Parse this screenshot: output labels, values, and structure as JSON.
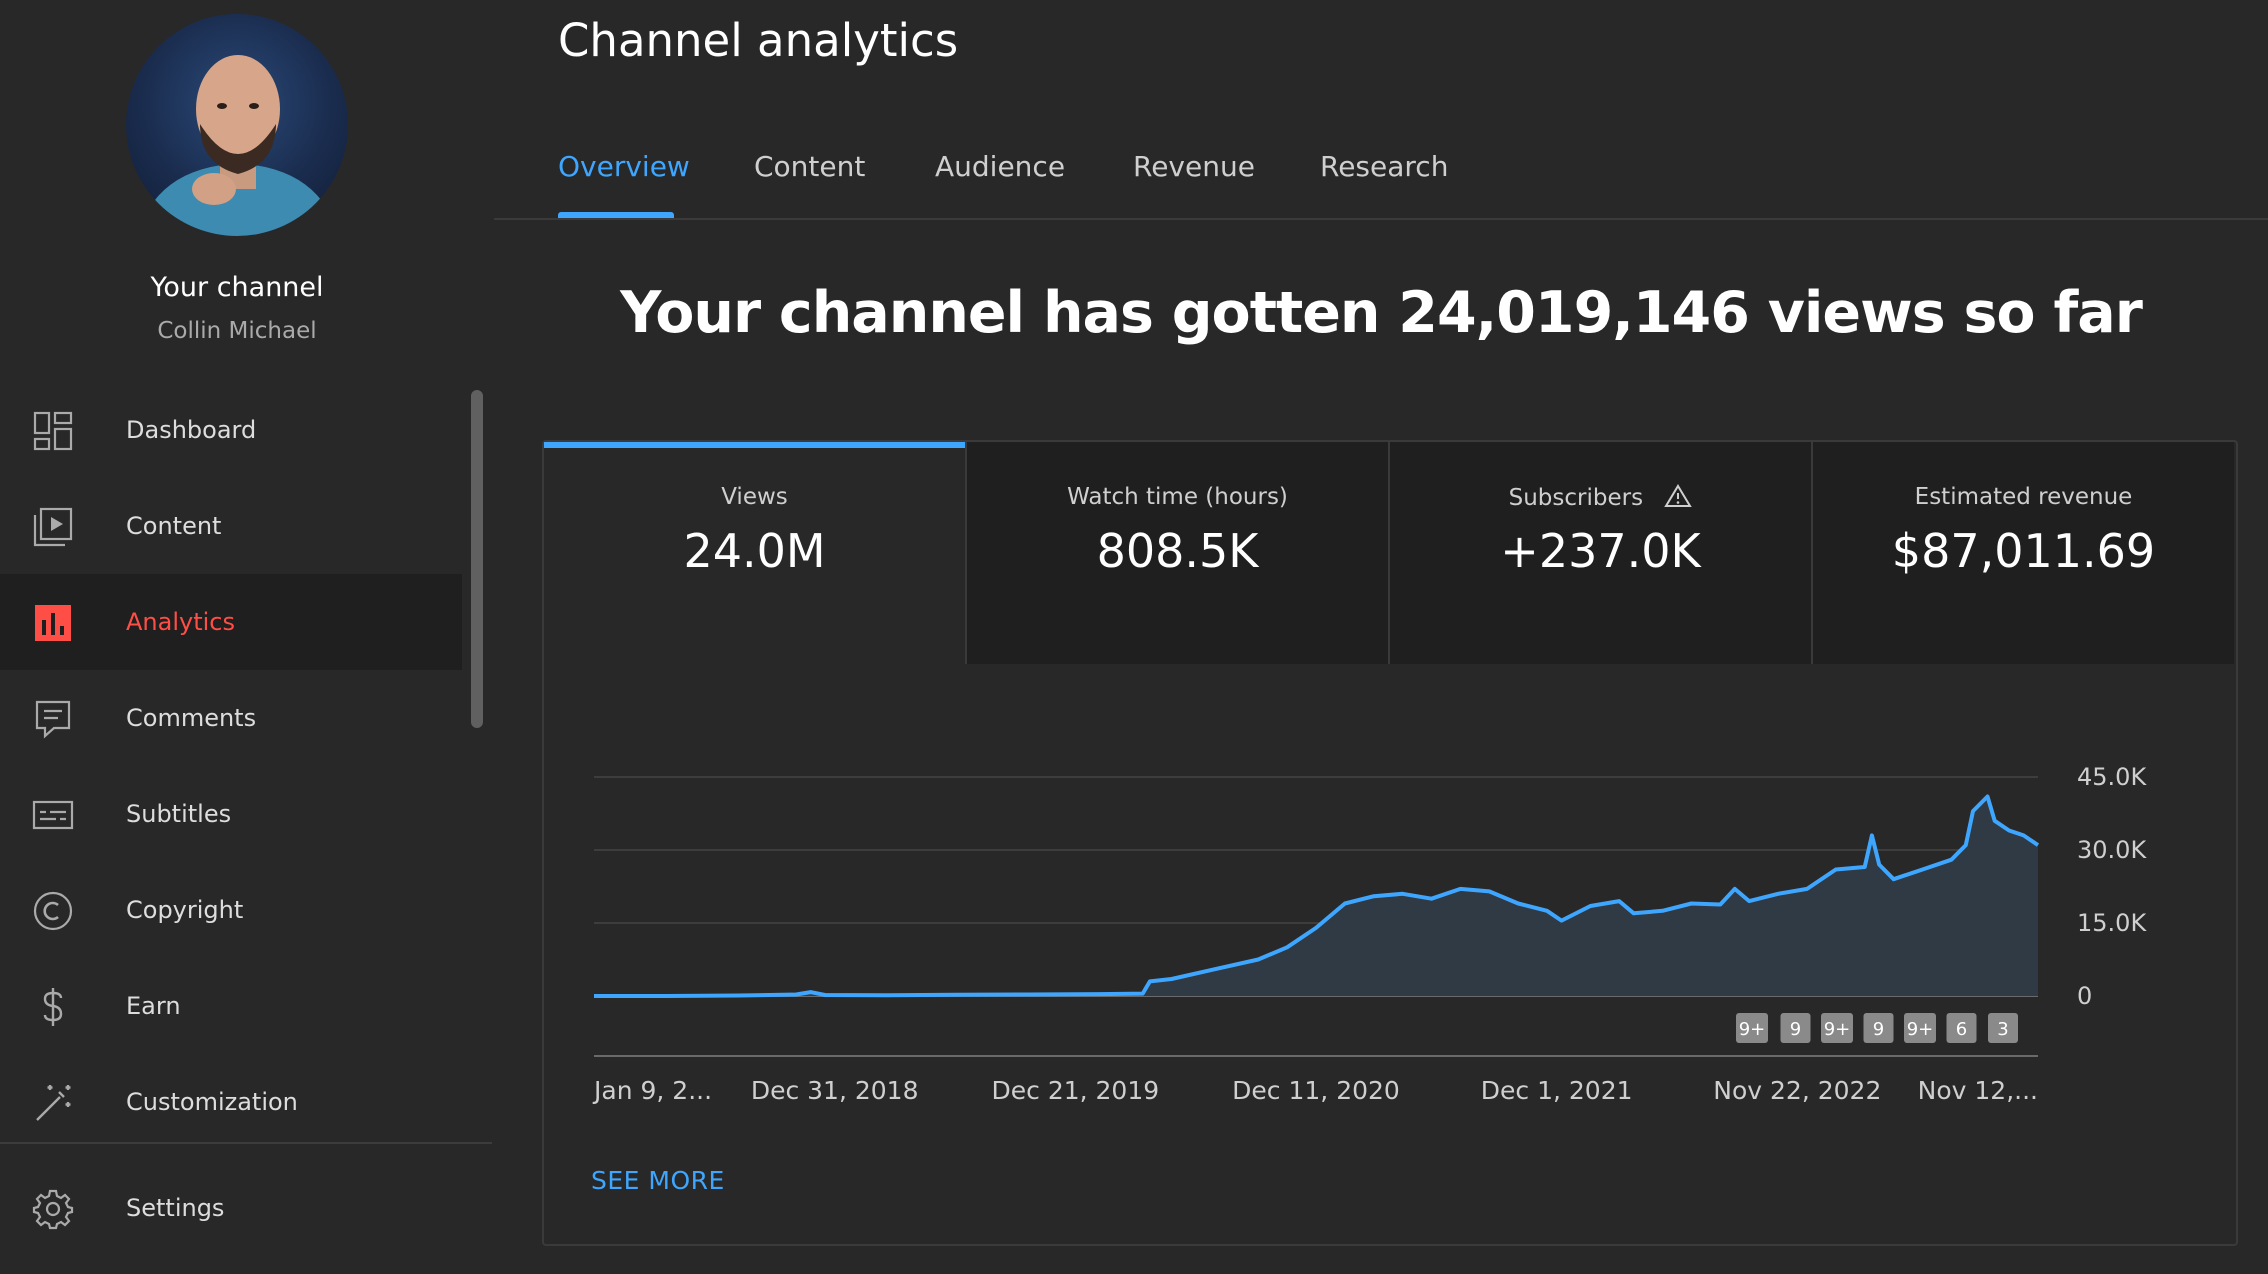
{
  "sidebar": {
    "channel_title": "Your channel",
    "channel_name": "Collin Michael",
    "items": [
      {
        "label": "Dashboard",
        "icon": "dashboard-icon"
      },
      {
        "label": "Content",
        "icon": "content-icon"
      },
      {
        "label": "Analytics",
        "icon": "analytics-icon",
        "active": true
      },
      {
        "label": "Comments",
        "icon": "comments-icon"
      },
      {
        "label": "Subtitles",
        "icon": "subtitles-icon"
      },
      {
        "label": "Copyright",
        "icon": "copyright-icon"
      },
      {
        "label": "Earn",
        "icon": "dollar-icon"
      },
      {
        "label": "Customization",
        "icon": "magic-wand-icon"
      }
    ],
    "settings_label": "Settings"
  },
  "page": {
    "title": "Channel analytics",
    "tabs": [
      {
        "label": "Overview",
        "active": true
      },
      {
        "label": "Content"
      },
      {
        "label": "Audience"
      },
      {
        "label": "Revenue"
      },
      {
        "label": "Research"
      }
    ],
    "headline": "Your channel has gotten 24,019,146 views so far"
  },
  "metrics": [
    {
      "label": "Views",
      "value": "24.0M",
      "active": true
    },
    {
      "label": "Watch time (hours)",
      "value": "808.5K"
    },
    {
      "label": "Subscribers",
      "value": "+237.0K",
      "warning": true
    },
    {
      "label": "Estimated revenue",
      "value": "$87,011.69"
    }
  ],
  "chart_data": {
    "type": "area",
    "series": [
      {
        "values": [
          [
            0,
            0
          ],
          [
            0.05,
            0
          ],
          [
            0.1,
            100
          ],
          [
            0.14,
            300
          ],
          [
            0.15,
            800
          ],
          [
            0.16,
            200
          ],
          [
            0.2,
            150
          ],
          [
            0.25,
            250
          ],
          [
            0.3,
            300
          ],
          [
            0.35,
            400
          ],
          [
            0.38,
            500
          ],
          [
            0.385,
            3000
          ],
          [
            0.4,
            3500
          ],
          [
            0.43,
            5500
          ],
          [
            0.46,
            7500
          ],
          [
            0.48,
            10000
          ],
          [
            0.5,
            14000
          ],
          [
            0.52,
            19000
          ],
          [
            0.54,
            20500
          ],
          [
            0.56,
            21000
          ],
          [
            0.58,
            20000
          ],
          [
            0.6,
            22000
          ],
          [
            0.62,
            21500
          ],
          [
            0.64,
            19000
          ],
          [
            0.66,
            17500
          ],
          [
            0.67,
            15500
          ],
          [
            0.69,
            18500
          ],
          [
            0.71,
            19500
          ],
          [
            0.72,
            17000
          ],
          [
            0.74,
            17500
          ],
          [
            0.76,
            19000
          ],
          [
            0.78,
            18800
          ],
          [
            0.79,
            22000
          ],
          [
            0.8,
            19500
          ],
          [
            0.82,
            21000
          ],
          [
            0.84,
            22000
          ],
          [
            0.86,
            26000
          ],
          [
            0.88,
            26500
          ],
          [
            0.885,
            33000
          ],
          [
            0.89,
            27000
          ],
          [
            0.9,
            24000
          ],
          [
            0.92,
            26000
          ],
          [
            0.94,
            28000
          ],
          [
            0.95,
            31000
          ],
          [
            0.955,
            38000
          ],
          [
            0.965,
            41000
          ],
          [
            0.97,
            36000
          ],
          [
            0.98,
            34000
          ],
          [
            0.99,
            33000
          ],
          [
            1.0,
            31000
          ]
        ]
      }
    ],
    "x_tick_labels": [
      "Jan 9, 2...",
      "Dec 31, 2018",
      "Dec 21, 2019",
      "Dec 11, 2020",
      "Dec 1, 2021",
      "Nov 22, 2022",
      "Nov 12,..."
    ],
    "y_tick_labels": [
      "45.0K",
      "30.0K",
      "15.0K",
      "0"
    ],
    "ylim": [
      0,
      45000
    ],
    "markers": [
      "9+",
      "9",
      "9+",
      "9",
      "9+",
      "6",
      "3"
    ],
    "grid": true,
    "colors": {
      "line": "#3ea6ff",
      "fill": "#2f3a44"
    }
  },
  "see_more": "SEE MORE"
}
